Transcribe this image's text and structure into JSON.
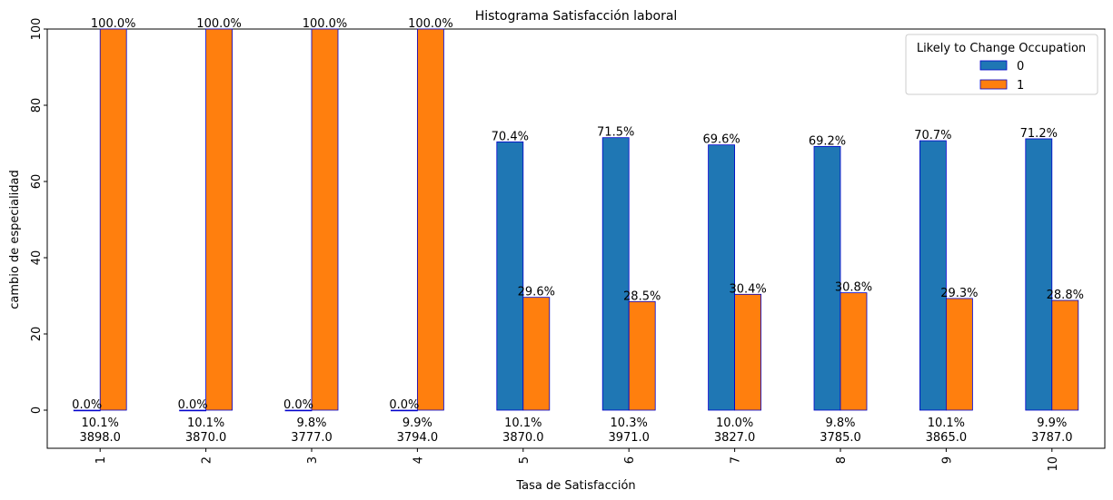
{
  "chart_data": {
    "type": "bar",
    "title": "Histograma Satisfacción laboral",
    "xlabel": "Tasa de Satisfacción",
    "ylabel": "cambio de especialidad",
    "ylim": [
      -10,
      100
    ],
    "yticks": [
      0,
      20,
      40,
      60,
      80,
      100
    ],
    "categories": [
      "1",
      "2",
      "3",
      "4",
      "5",
      "6",
      "7",
      "8",
      "9",
      "10"
    ],
    "series": [
      {
        "name": "0",
        "color": "#1f77b4",
        "values": [
          0.0,
          0.0,
          0.0,
          0.0,
          70.4,
          71.5,
          69.6,
          69.2,
          70.7,
          71.2
        ],
        "labels": [
          "0.0%",
          "0.0%",
          "0.0%",
          "0.0%",
          "70.4%",
          "71.5%",
          "69.6%",
          "69.2%",
          "70.7%",
          "71.2%"
        ]
      },
      {
        "name": "1",
        "color": "#ff7f0e",
        "values": [
          100.0,
          100.0,
          100.0,
          100.0,
          29.6,
          28.5,
          30.4,
          30.8,
          29.3,
          28.8
        ],
        "labels": [
          "100.0%",
          "100.0%",
          "100.0%",
          "100.0%",
          "29.6%",
          "28.5%",
          "30.4%",
          "30.8%",
          "29.3%",
          "28.8%"
        ]
      }
    ],
    "category_share_labels": [
      "10.1%",
      "10.1%",
      "9.8%",
      "9.9%",
      "10.1%",
      "10.3%",
      "10.0%",
      "9.8%",
      "10.1%",
      "9.9%"
    ],
    "category_count_labels": [
      "3898.0",
      "3870.0",
      "3777.0",
      "3794.0",
      "3870.0",
      "3971.0",
      "3827.0",
      "3785.0",
      "3865.0",
      "3787.0"
    ],
    "bar_edge_color": "#0000cc",
    "legend": {
      "title": "Likely to Change Occupation",
      "position": "top-right"
    },
    "grid": false
  }
}
